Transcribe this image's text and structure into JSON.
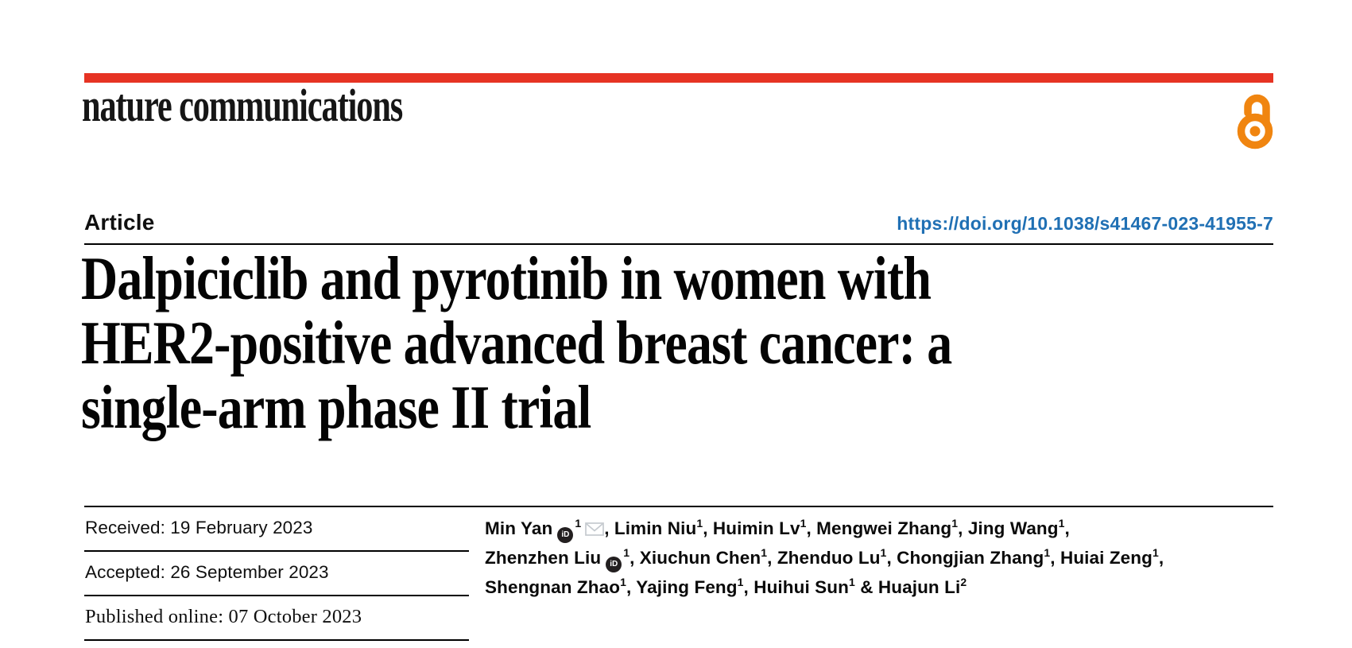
{
  "journal": {
    "logo_text": "nature communications",
    "brand_bar_color": "#e63323",
    "open_access_icon": "open-padlock",
    "open_access_color": "#f08510"
  },
  "article_meta": {
    "type_label": "Article",
    "doi_url": "https://doi.org/10.1038/s41467-023-41955-7",
    "doi_color": "#2070b4"
  },
  "title_lines": [
    "Dalpiciclib and pyrotinib in women with",
    "HER2-positive advanced breast cancer: a",
    "single-arm phase II trial"
  ],
  "history": {
    "rows": [
      {
        "text": "Received: 19 February 2023",
        "serif": false
      },
      {
        "text": "Accepted: 26 September 2023",
        "serif": false
      },
      {
        "text": "Published online: 07 October 2023",
        "serif": true
      }
    ]
  },
  "authors": {
    "separator": ", ",
    "last_separator": " & ",
    "list": [
      {
        "name": "Min Yan",
        "sup": "1",
        "orcid": true,
        "email": true
      },
      {
        "name": "Limin Niu",
        "sup": "1"
      },
      {
        "name": "Huimin Lv",
        "sup": "1"
      },
      {
        "name": "Mengwei Zhang",
        "sup": "1"
      },
      {
        "name": "Jing Wang",
        "sup": "1",
        "break_after": true
      },
      {
        "name": "Zhenzhen Liu",
        "sup": "1",
        "orcid": true
      },
      {
        "name": "Xiuchun Chen",
        "sup": "1"
      },
      {
        "name": "Zhenduo Lu",
        "sup": "1"
      },
      {
        "name": "Chongjian Zhang",
        "sup": "1"
      },
      {
        "name": "Huiai Zeng",
        "sup": "1",
        "break_after": true
      },
      {
        "name": "Shengnan Zhao",
        "sup": "1"
      },
      {
        "name": "Yajing Feng",
        "sup": "1"
      },
      {
        "name": "Huihui Sun",
        "sup": "1"
      },
      {
        "name": "Huajun Li",
        "sup": "2"
      }
    ]
  }
}
